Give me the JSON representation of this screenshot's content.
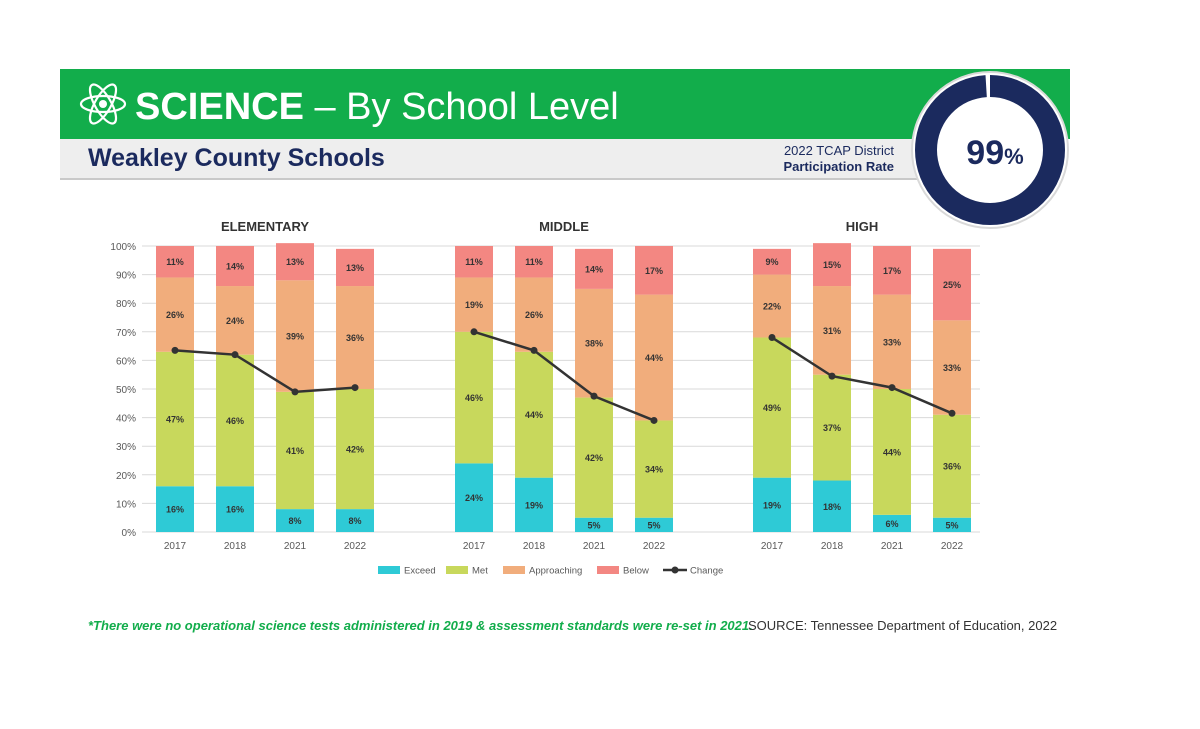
{
  "header": {
    "title_bold": "SCIENCE",
    "title_rest": "– By School Level",
    "district": "Weakley County Schools",
    "participation_line1": "2022 TCAP District",
    "participation_line2": "Participation Rate",
    "participation_value": "99",
    "participation_unit": "%"
  },
  "footer": {
    "footnote": "*There were no operational science tests administered in 2019 & assessment standards were re-set in 2021.",
    "source": "SOURCE: Tennessee Department of Education, 2022"
  },
  "colors": {
    "green": "#12ad4b",
    "navy": "#1b2a5e",
    "Exceed": "#2ecad6",
    "Met": "#c8d85c",
    "Approaching": "#f1ad7c",
    "Below": "#f38782",
    "Change": "#333333"
  },
  "chart_data": {
    "type": "bar",
    "stacked": true,
    "ylim": [
      0,
      100
    ],
    "yticks": [
      "0%",
      "10%",
      "20%",
      "30%",
      "40%",
      "50%",
      "60%",
      "70%",
      "80%",
      "90%",
      "100%"
    ],
    "legend": [
      "Exceed",
      "Met",
      "Approaching",
      "Below",
      "Change"
    ],
    "legend_position": "bottom",
    "groups": [
      {
        "title": "ELEMENTARY",
        "categories": [
          "2017",
          "2018",
          "2021",
          "2022"
        ],
        "series": [
          {
            "name": "Exceed",
            "values": [
              16,
              16,
              8,
              8
            ]
          },
          {
            "name": "Met",
            "values": [
              47,
              46,
              41,
              42
            ]
          },
          {
            "name": "Approaching",
            "values": [
              26,
              24,
              39,
              36
            ]
          },
          {
            "name": "Below",
            "values": [
              11,
              14,
              13,
              13
            ]
          }
        ],
        "change": [
          63.5,
          62,
          49,
          50.5
        ]
      },
      {
        "title": "MIDDLE",
        "categories": [
          "2017",
          "2018",
          "2021",
          "2022"
        ],
        "series": [
          {
            "name": "Exceed",
            "values": [
              24,
              19,
              5,
              5
            ]
          },
          {
            "name": "Met",
            "values": [
              46,
              44,
              42,
              34
            ]
          },
          {
            "name": "Approaching",
            "values": [
              19,
              26,
              38,
              44
            ]
          },
          {
            "name": "Below",
            "values": [
              11,
              11,
              14,
              17
            ]
          }
        ],
        "change": [
          70,
          63.5,
          47.5,
          39
        ]
      },
      {
        "title": "HIGH",
        "categories": [
          "2017",
          "2018",
          "2021",
          "2022"
        ],
        "series": [
          {
            "name": "Exceed",
            "values": [
              19,
              18,
              6,
              5
            ]
          },
          {
            "name": "Met",
            "values": [
              49,
              37,
              44,
              36
            ]
          },
          {
            "name": "Approaching",
            "values": [
              22,
              31,
              33,
              33
            ]
          },
          {
            "name": "Below",
            "values": [
              9,
              15,
              17,
              25
            ]
          }
        ],
        "change": [
          68,
          54.5,
          50.5,
          41.5
        ]
      }
    ]
  }
}
